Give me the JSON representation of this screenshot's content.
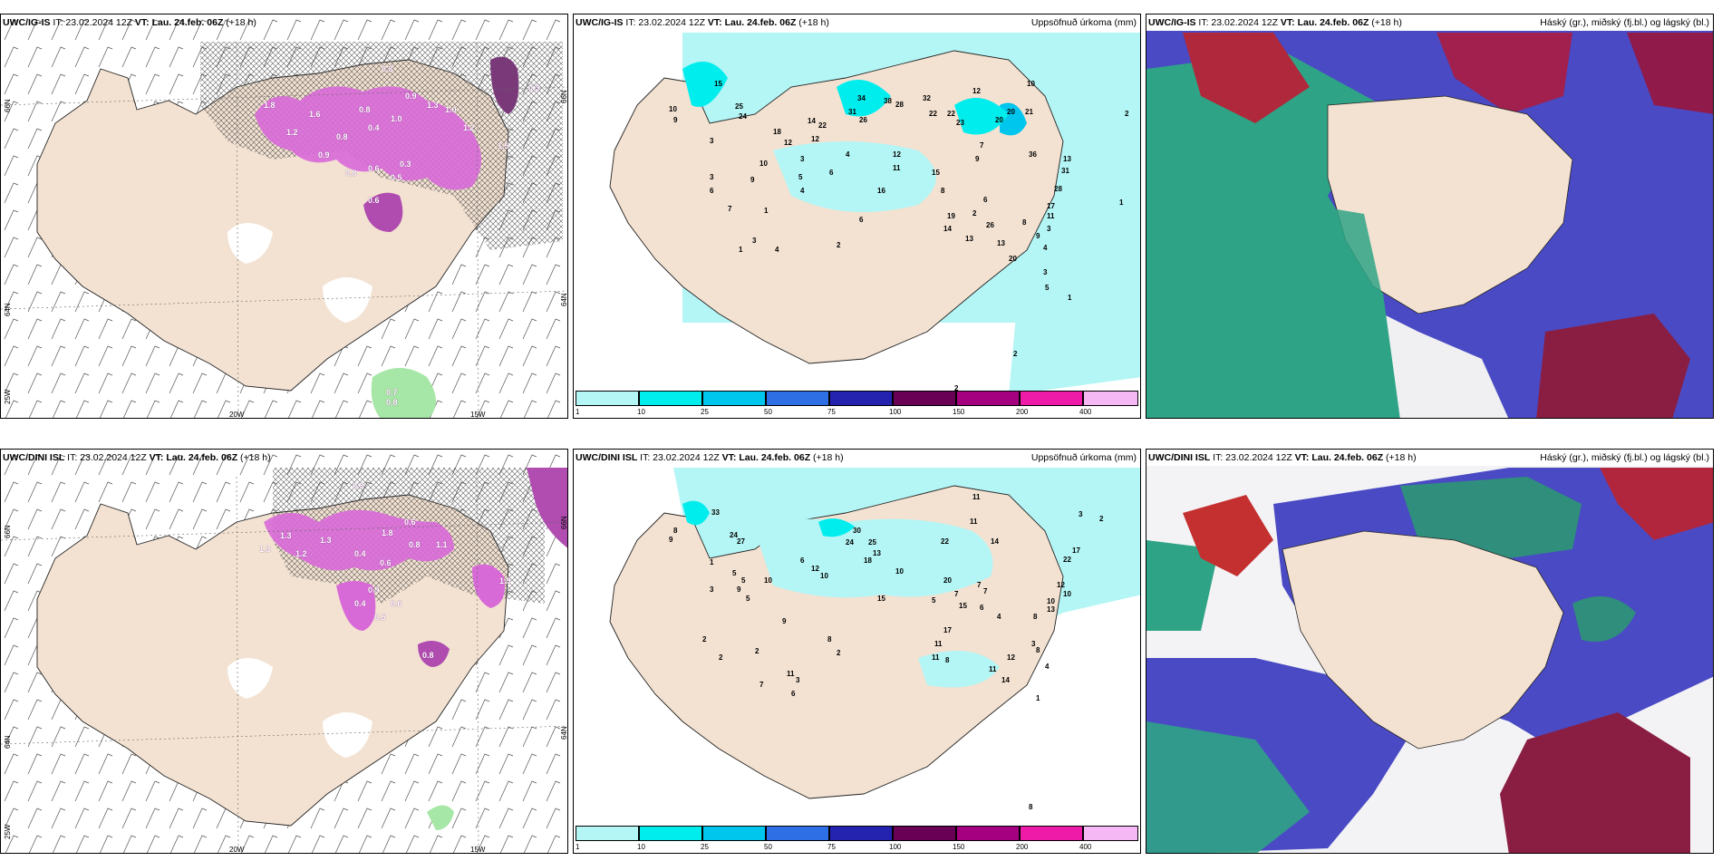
{
  "panels": {
    "p1": {
      "model": "UWC/IG-IS",
      "it": "IT: 23.02.2024 12Z",
      "vt": "VT: Lau. 24.feb. 06Z",
      "lead": "(+18 h)",
      "right_title": ""
    },
    "p2": {
      "model": "UWC/IG-IS",
      "it": "IT: 23.02.2024 12Z",
      "vt": "VT: Lau. 24.feb. 06Z",
      "lead": "(+18 h)",
      "right_title": "Uppsöfnuð úrkoma (mm)"
    },
    "p3": {
      "model": "UWC/IG-IS",
      "it": "IT: 23.02.2024 12Z",
      "vt": "VT: Lau. 24.feb. 06Z",
      "lead": "(+18 h)",
      "right_title": "Háský (gr.), miðský (fj.bl.) og lágský (bl.)"
    },
    "p4": {
      "model": "UWC/DINI ISL",
      "it": "IT: 23.02.2024 12Z",
      "vt": "VT: Lau. 24.feb. 06Z",
      "lead": "(+18 h)",
      "right_title": ""
    },
    "p5": {
      "model": "UWC/DINI ISL",
      "it": "IT: 23.02.2024 12Z",
      "vt": "VT: Lau. 24.feb. 06Z",
      "lead": "(+18 h)",
      "right_title": "Uppsöfnuð úrkoma (mm)"
    },
    "p6": {
      "model": "UWC/DINI ISL",
      "it": "IT: 23.02.2024 12Z",
      "vt": "VT: Lau. 24.feb. 06Z",
      "lead": "(+18 h)",
      "right_title": "Háský (gr.), miðský (fj.bl.) og lágský (bl.)"
    }
  },
  "axes": {
    "lon_20": "20W",
    "lon_15": "15W",
    "lat_66": "66N",
    "lat_64": "64N",
    "lon_25": "25W",
    "lat_66_right": "66N",
    "lat_64_right": "64N"
  },
  "colorbar": {
    "labels": [
      "1",
      "10",
      "25",
      "50",
      "75",
      "100",
      "150",
      "200",
      "400"
    ],
    "colors": [
      "#b4f5f5",
      "#00eded",
      "#00c6ee",
      "#2f6fe6",
      "#2323b0",
      "#6a0055",
      "#a4007f",
      "#ee1aa8",
      "#f5b8f5"
    ]
  },
  "precip_values_top": [
    "15",
    "9",
    "10",
    "25",
    "24",
    "3",
    "14",
    "22",
    "34",
    "12",
    "31",
    "26",
    "38",
    "28",
    "32",
    "22",
    "22",
    "23",
    "20",
    "20",
    "21",
    "12",
    "10",
    "18",
    "12",
    "4",
    "10",
    "3",
    "6",
    "5",
    "3",
    "6",
    "9",
    "7",
    "1",
    "16",
    "11",
    "12",
    "15",
    "8",
    "19",
    "7",
    "9",
    "2",
    "6",
    "36",
    "14",
    "26",
    "8",
    "13",
    "31",
    "28",
    "17",
    "13",
    "11",
    "13",
    "20",
    "9",
    "3",
    "4",
    "3",
    "5",
    "2",
    "2",
    "1",
    "1",
    "4",
    "3",
    "2",
    "6",
    "4",
    "2",
    "1"
  ],
  "precip_values_bottom": [
    "33",
    "8",
    "9",
    "24",
    "27",
    "1",
    "5",
    "9",
    "3",
    "10",
    "5",
    "6",
    "30",
    "24",
    "25",
    "18",
    "13",
    "22",
    "12",
    "10",
    "10",
    "11",
    "14",
    "20",
    "7",
    "7",
    "5",
    "6",
    "11",
    "4",
    "15",
    "17",
    "8",
    "7",
    "11",
    "8",
    "2",
    "2",
    "2",
    "7",
    "11",
    "3",
    "12",
    "11",
    "14",
    "22",
    "12",
    "10",
    "17",
    "8",
    "3",
    "4",
    "11",
    "10",
    "13",
    "3",
    "2",
    "1",
    "6",
    "2",
    "8",
    "15",
    "8",
    "5",
    "9"
  ],
  "snow_values_top": [
    "0.3",
    "0.3",
    "0.9",
    "1.3",
    "1.0",
    "1.8",
    "1.6",
    "0.8",
    "1.0",
    "1.2",
    "0.8",
    "0.4",
    "0.9",
    "0.6",
    "0.8",
    "0.5",
    "0.3",
    "1.5",
    "1.2",
    "0.7",
    "0.8",
    "0.6"
  ],
  "snow_values_bottom": [
    "0.3",
    "0.6",
    "1.3",
    "1.3",
    "1.8",
    "0.4",
    "0.8",
    "1.1",
    "0.6",
    "1.5",
    "1.2",
    "1.3",
    "0.9",
    "0.5",
    "0.4",
    "0.8",
    "0.6"
  ]
}
